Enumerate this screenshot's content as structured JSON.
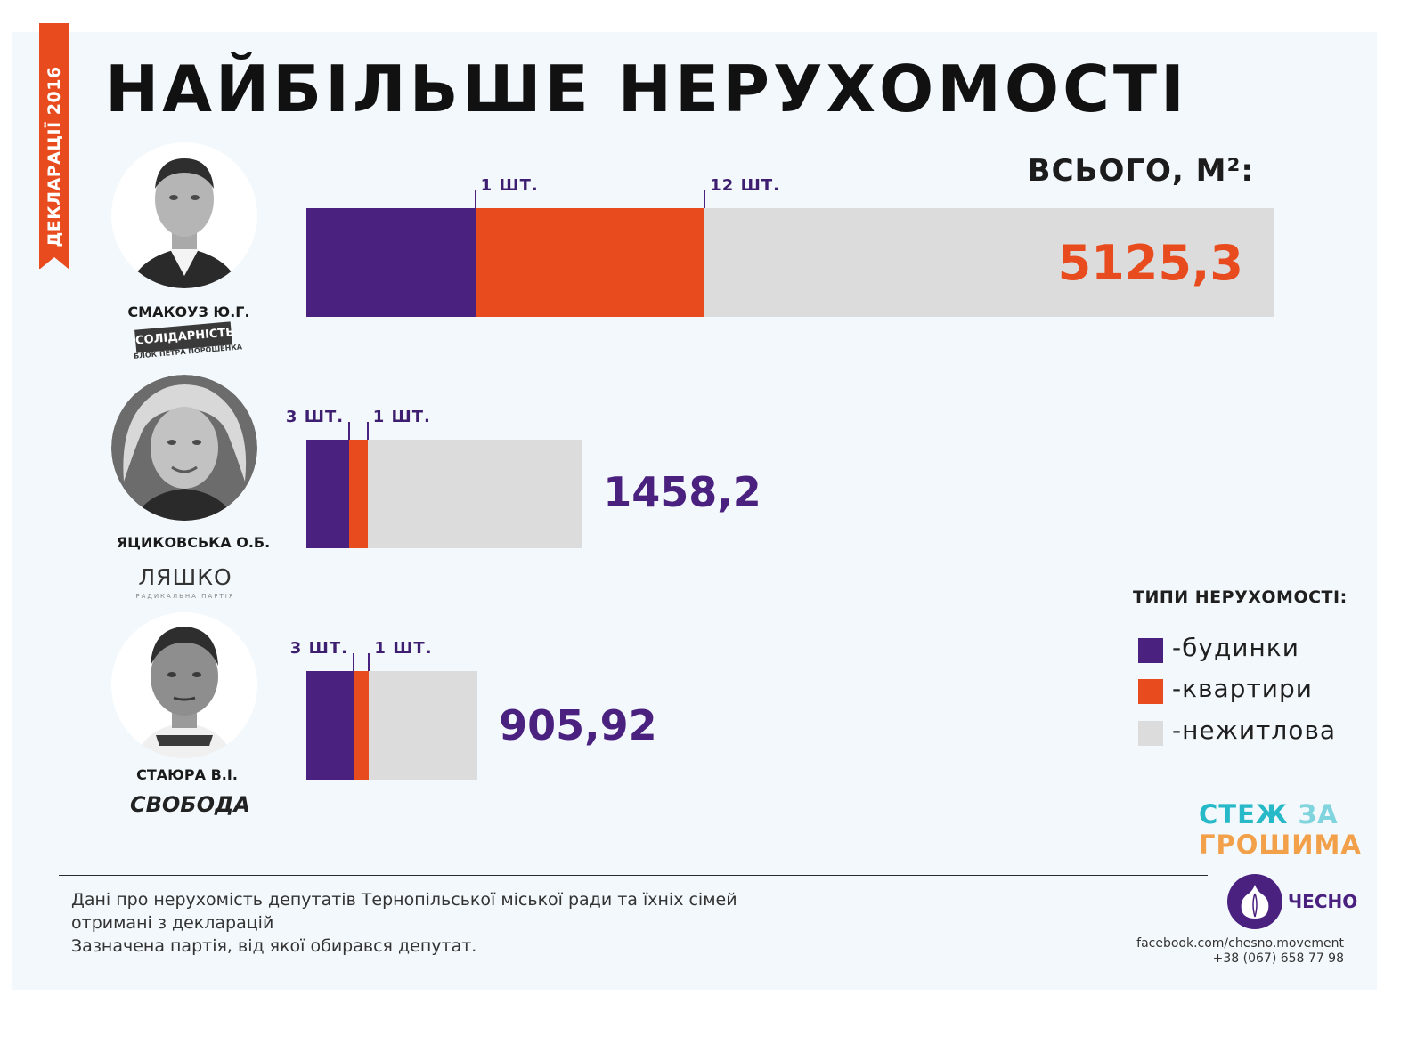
{
  "ribbon": {
    "text": "ДЕКЛАРАЦІЇ 2016"
  },
  "title": "НАЙБІЛЬШЕ НЕРУХОМОСТІ",
  "total_label": "ВСЬОГО, М²:",
  "colors": {
    "houses": "#4b2180",
    "apartments": "#e84c1e",
    "nonresidential": "#dcdcdc",
    "accent": "#e84c1e",
    "panel": "#f2f8fb"
  },
  "deputies": [
    {
      "name": "СМАКОУЗ Ю.Г.",
      "party": "СОЛІДАРНІСТЬ",
      "party_sub": "БЛОК ПЕТРА ПОРОШЕНКА",
      "count_houses": "1 ШТ.",
      "count_apartments": "12 ШТ.",
      "total": "5125,3"
    },
    {
      "name": "ЯЦИКОВСЬКА О.Б.",
      "party": "ЛЯШКО",
      "party_sub": "РАДИКАЛЬНА ПАРТІЯ",
      "count_houses": "3 ШТ.",
      "count_apartments": "1 ШТ.",
      "total": "1458,2"
    },
    {
      "name": "СТАЮРА В.І.",
      "party": "СВОБОДА",
      "count_houses": "3 ШТ.",
      "count_apartments": "1 ШТ.",
      "total": "905,92"
    }
  ],
  "legend": {
    "title": "ТИПИ НЕРУХОМОСТІ:",
    "items": [
      {
        "label": "-будинки",
        "color": "#4b2180"
      },
      {
        "label": "-квартири",
        "color": "#e84c1e"
      },
      {
        "label": "-нежитлова",
        "color": "#dcdcdc"
      }
    ]
  },
  "footnote": {
    "line1": "Дані про нерухомість депутатів Тернопільської міської ради та їхніх сімей",
    "line2": "отримані з декларацій",
    "line3": "Зазначена партія, від якої обирався депутат."
  },
  "brand": {
    "stezh_line1": "СТЕЖ",
    "stezh_za": "ЗА",
    "stezh_line2": "ГРОШИМА",
    "chesno": "ЧЕСНО",
    "facebook": "facebook.com/chesno.movement",
    "phone": "+38 (067) 658 77 98"
  },
  "chart_data": {
    "type": "bar",
    "orientation": "horizontal",
    "stacked": true,
    "categories": [
      "СМАКОУЗ Ю.Г.",
      "ЯЦИКОВСЬКА О.Б.",
      "СТАЮРА В.І."
    ],
    "series": [
      {
        "name": "-будинки",
        "values": [
          894,
          226,
          249
        ]
      },
      {
        "name": "-квартири",
        "values": [
          1215,
          98,
          83
        ]
      },
      {
        "name": "-нежитлова",
        "values": [
          3016.3,
          1134.2,
          573.92
        ]
      }
    ],
    "totals": [
      5125.3,
      1458.2,
      905.92
    ],
    "units": "м²",
    "legend_position": "right"
  }
}
